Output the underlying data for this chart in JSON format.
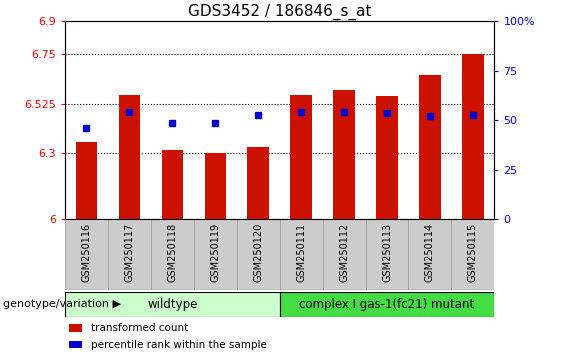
{
  "title": "GDS3452 / 186846_s_at",
  "samples": [
    "GSM250116",
    "GSM250117",
    "GSM250118",
    "GSM250119",
    "GSM250120",
    "GSM250111",
    "GSM250112",
    "GSM250113",
    "GSM250114",
    "GSM250115"
  ],
  "red_values": [
    6.35,
    6.565,
    6.315,
    6.3,
    6.33,
    6.565,
    6.59,
    6.56,
    6.655,
    6.75
  ],
  "blue_values": [
    6.415,
    6.49,
    6.44,
    6.44,
    6.475,
    6.49,
    6.49,
    6.485,
    6.47,
    6.475
  ],
  "y_min": 6.0,
  "y_max": 6.9,
  "y_ticks": [
    6.0,
    6.3,
    6.525,
    6.75,
    6.9
  ],
  "y_tick_labels": [
    "6",
    "6.3",
    "6.525",
    "6.75",
    "6.9"
  ],
  "right_y_ticks": [
    0,
    25,
    50,
    75,
    100
  ],
  "right_y_tick_labels": [
    "0",
    "25",
    "50",
    "75",
    "100%"
  ],
  "bar_color": "#CC1100",
  "marker_color": "#0000CC",
  "wildtype_color": "#CCFFCC",
  "mutant_color": "#44DD44",
  "wildtype_label": "wildtype",
  "mutant_label": "complex I gas-1(fc21) mutant",
  "genotype_label": "genotype/variation",
  "legend_red": "transformed count",
  "legend_blue": "percentile rank within the sample",
  "n_wildtype": 5,
  "n_mutant": 5,
  "bg_color": "#FFFFFF",
  "bar_width": 0.5,
  "tick_fontsize": 8,
  "label_fontsize": 8,
  "title_fontsize": 11,
  "sample_fontsize": 7,
  "legend_fontsize": 7.5,
  "genotype_fontsize": 8,
  "geno_bar_fontsize": 8.5,
  "xlabel_bg": "#CCCCCC",
  "xlabel_border": "#999999",
  "dotted_grid_levels": [
    6.3,
    6.525,
    6.75
  ]
}
